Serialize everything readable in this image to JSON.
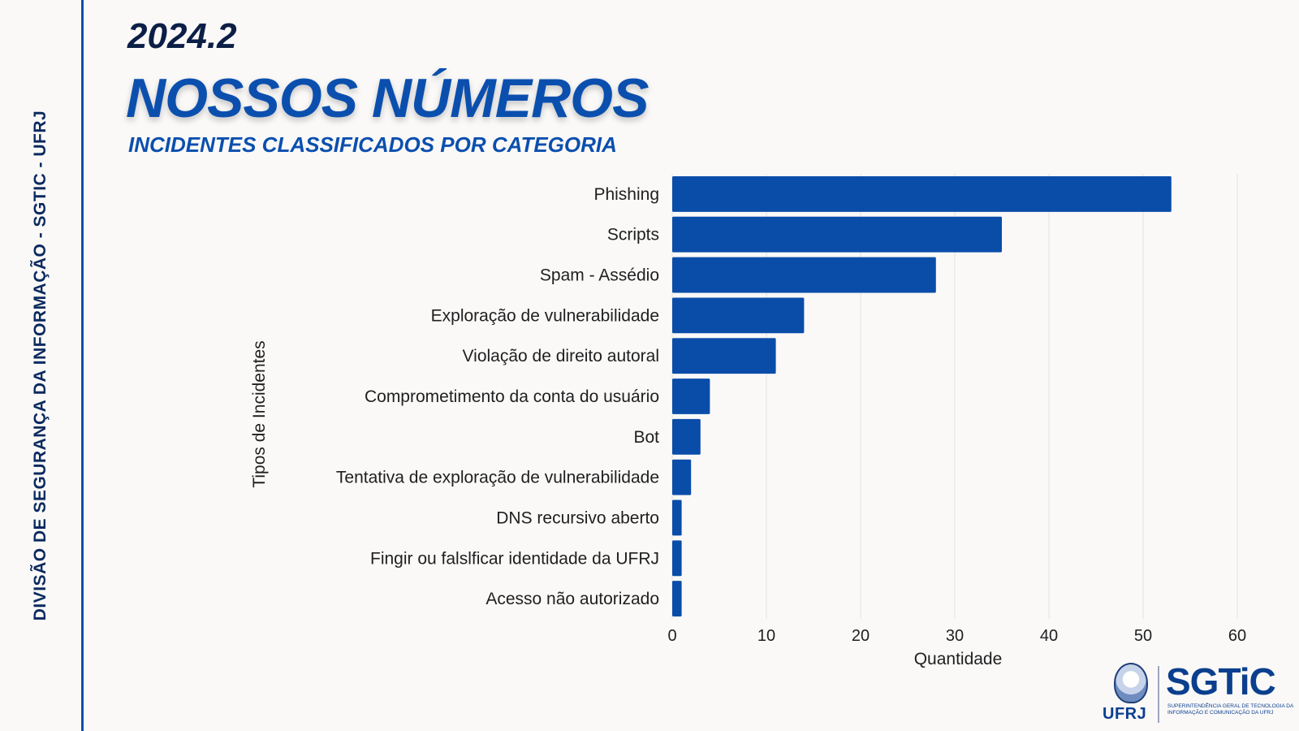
{
  "sidebar": {
    "label": "DIVISÃO DE SEGURANÇA DA INFORMAÇÃO - SGTIC - UFRJ"
  },
  "header": {
    "period": "2024.2",
    "headline": "NOSSOS NÚMEROS",
    "subheadline": "INCIDENTES CLASSIFICADOS POR CATEGORIA"
  },
  "colors": {
    "accent": "#0b4fae",
    "bar": "#0a4da9",
    "dark": "#0b1f46",
    "grid": "#e2e2e2"
  },
  "chart_data": {
    "type": "bar",
    "orientation": "horizontal",
    "categories": [
      "Phishing",
      "Scripts",
      "Spam - Assédio",
      "Exploração de vulnerabilidade",
      "Violação de direito autoral",
      "Comprometimento da conta do usuário",
      "Bot",
      "Tentativa de exploração de vulnerabilidade",
      "DNS recursivo aberto",
      "Fingir ou falslficar identidade da UFRJ",
      "Acesso não autorizado"
    ],
    "values": [
      53,
      35,
      28,
      14,
      11,
      4,
      3,
      2,
      1,
      1,
      1
    ],
    "xlabel": "Quantidade",
    "ylabel": "Tipos de Incidentes",
    "xlim": [
      0,
      60
    ],
    "xticks": [
      "0",
      "10",
      "20",
      "30",
      "40",
      "50",
      "60"
    ],
    "grid": true,
    "legend": "none"
  },
  "logo": {
    "ufrj": "UFRJ",
    "sgtic": "SGTiC",
    "sgtic_sub": "Superintendência Geral de Tecnologia da Informação e Comunicação da UFRJ"
  }
}
